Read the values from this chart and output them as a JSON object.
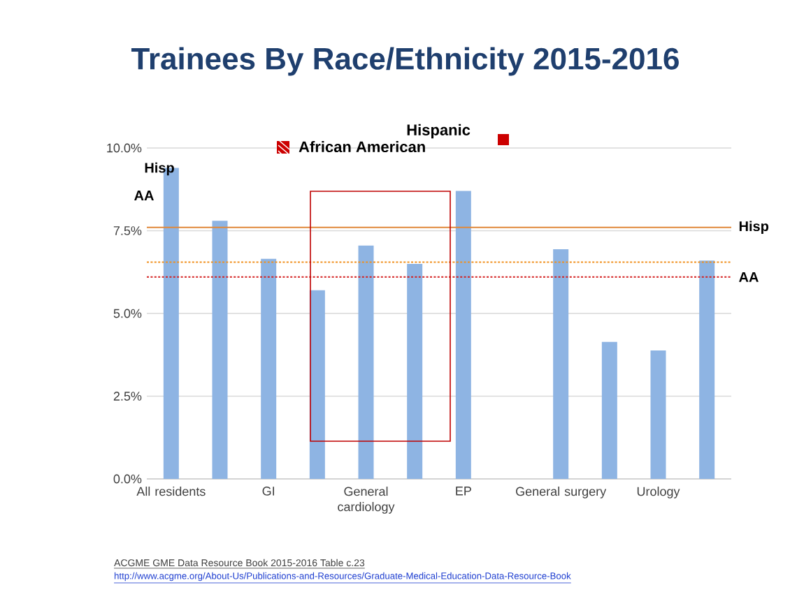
{
  "chart_data": {
    "type": "bar",
    "title": "Trainees By Race/Ethnicity 2015-2016",
    "categories": [
      "All residents",
      null,
      "GI",
      null,
      "General cardiology",
      null,
      "EP",
      null,
      "General surgery",
      null,
      "Urology",
      null
    ],
    "values": [
      9.4,
      7.8,
      6.65,
      5.7,
      7.05,
      6.5,
      8.7,
      null,
      6.94,
      4.14,
      3.88,
      6.6
    ],
    "color": "#8eb4e3",
    "ylim": [
      0,
      10
    ],
    "yticks": [
      {
        "value": 0,
        "label": "0.0%"
      },
      {
        "value": 2.5,
        "label": "2.5%"
      },
      {
        "value": 5,
        "label": "5.0%"
      },
      {
        "value": 7.5,
        "label": "7.5%"
      },
      {
        "value": 10,
        "label": "10.0%"
      }
    ],
    "grid": "y",
    "ref_lines": [
      {
        "axis": "y",
        "value": 7.6,
        "label": "Hisp",
        "color": "#e0883a",
        "line_style": "solid"
      },
      {
        "axis": "y",
        "value": 6.55,
        "color": "#f0901e",
        "line_style": "dotted"
      },
      {
        "axis": "y",
        "value": 6.1,
        "label": "AA",
        "color": "#d42020",
        "line_style": "dotted"
      }
    ],
    "annotations": [
      "Hispanic",
      "African American",
      "Hisp",
      "AA",
      "ACGME GME Data Resource Book 2015-2016 Table c.23",
      "http://www.acgme.org/About-Us/Publications-and-Resources/Graduate-Medical-Education-Data-Resource-Book"
    ]
  }
}
